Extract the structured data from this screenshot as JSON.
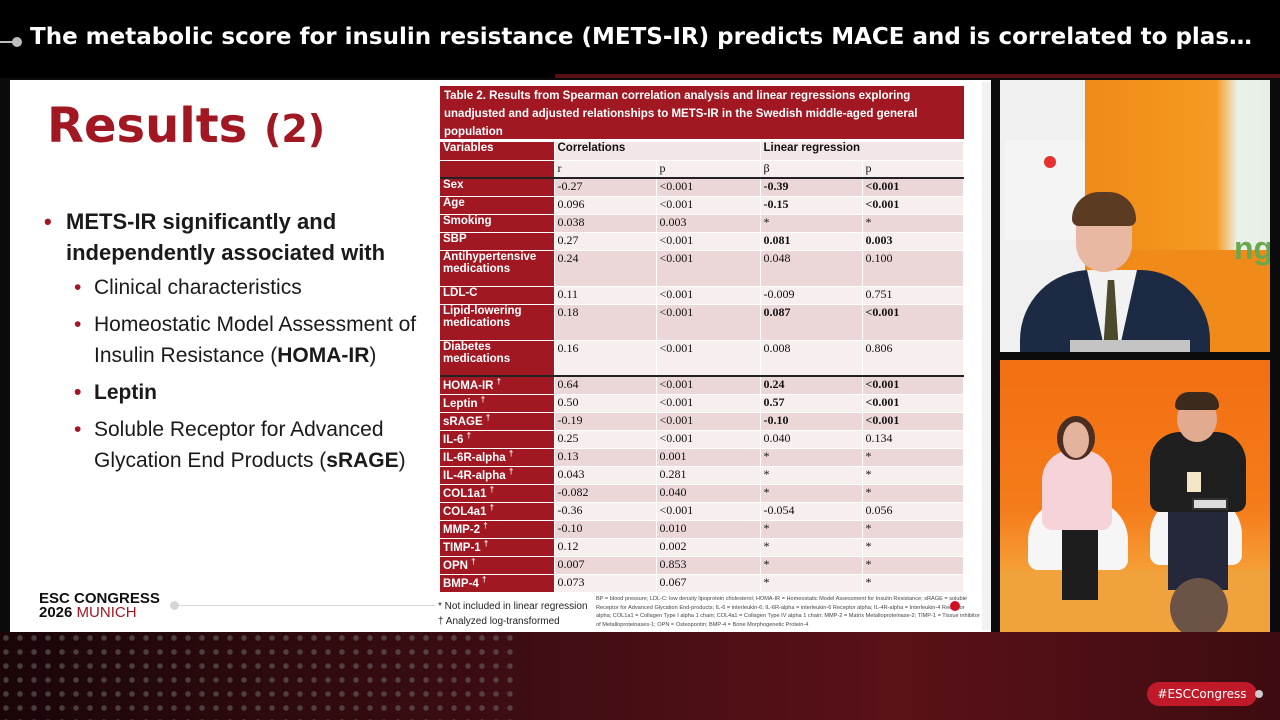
{
  "header": {
    "title": "The metabolic score for insulin resistance (METS-IR) predicts MACE and is correlated to plasma levels of leptin and sRAGE"
  },
  "slide": {
    "title_main": "Results",
    "title_sub": "(2)",
    "bullets": [
      {
        "level": 1,
        "text": "METS-IR significantly and independently associated with",
        "bold": true
      },
      {
        "level": 2,
        "text": "Clinical characteristics"
      },
      {
        "level": 2,
        "text_before": "Homeostatic Model Assessment of Insulin Resistance (",
        "text_bold": "HOMA-IR",
        "text_after": ")"
      },
      {
        "level": 2,
        "text": "Leptin",
        "bold": true
      },
      {
        "level": 2,
        "text_before": "Soluble Receptor for Advanced Glycation End Products (",
        "text_bold": "sRAGE",
        "text_after": ")"
      }
    ],
    "logo": {
      "line1": "ESC CONGRESS",
      "line2_year": "2026",
      "line2_city": "MUNICH"
    }
  },
  "table": {
    "caption": "Table 2. Results from Spearman correlation analysis and linear regressions exploring unadjusted and adjusted relationships to METS-IR in the Swedish middle-aged general population",
    "header": {
      "variables": "Variables",
      "correlations": "Correlations",
      "linear_regression": "Linear regression",
      "r": "r",
      "p": "p",
      "beta": "β",
      "p2": "p"
    },
    "rows": [
      {
        "var": "Sex",
        "r": "-0.27",
        "p": "<0.001",
        "beta": "-0.39",
        "p2": "<0.001",
        "bold": true
      },
      {
        "var": "Age",
        "r": "0.096",
        "p": "<0.001",
        "beta": "-0.15",
        "p2": "<0.001",
        "bold": true
      },
      {
        "var": "Smoking",
        "r": "0.038",
        "p": "0.003",
        "beta": "*",
        "p2": "*"
      },
      {
        "var": "SBP",
        "r": "0.27",
        "p": "<0.001",
        "beta": "0.081",
        "p2": "0.003",
        "bold": true
      },
      {
        "var": "Antihypertensive medications",
        "r": "0.24",
        "p": "<0.001",
        "beta": "0.048",
        "p2": "0.100"
      },
      {
        "var": "LDL-C",
        "r": "0.11",
        "p": "<0.001",
        "beta": "-0.009",
        "p2": "0.751"
      },
      {
        "var": "Lipid-lowering medications",
        "r": "0.18",
        "p": "<0.001",
        "beta": "0.087",
        "p2": "<0.001",
        "bold": true
      },
      {
        "var": "Diabetes medications",
        "r": "0.16",
        "p": "<0.001",
        "beta": "0.008",
        "p2": "0.806"
      },
      {
        "var": "HOMA-IR",
        "r": "0.64",
        "p": "<0.001",
        "beta": "0.24",
        "p2": "<0.001",
        "bold": true
      },
      {
        "var": "Leptin",
        "r": "0.50",
        "p": "<0.001",
        "beta": "0.57",
        "p2": "<0.001",
        "bold": true
      },
      {
        "var": "sRAGE",
        "r": "-0.19",
        "p": "<0.001",
        "beta": "-0.10",
        "p2": "<0.001",
        "bold": true
      },
      {
        "var": "IL-6",
        "r": "0.25",
        "p": "<0.001",
        "beta": "0.040",
        "p2": "0.134"
      },
      {
        "var": "IL-6R-alpha",
        "r": "0.13",
        "p": "0.001",
        "beta": "*",
        "p2": "*"
      },
      {
        "var": "IL-4R-alpha",
        "r": "0.043",
        "p": "0.281",
        "beta": "*",
        "p2": "*"
      },
      {
        "var": "COL1a1",
        "r": "-0.082",
        "p": "0.040",
        "beta": "*",
        "p2": "*"
      },
      {
        "var": "COL4a1",
        "r": "-0.36",
        "p": "<0.001",
        "beta": "-0.054",
        "p2": "0.056"
      },
      {
        "var": "MMP-2",
        "r": "-0.10",
        "p": "0.010",
        "beta": "*",
        "p2": "*"
      },
      {
        "var": "TIMP-1",
        "r": "0.12",
        "p": "0.002",
        "beta": "*",
        "p2": "*"
      },
      {
        "var": "OPN",
        "r": "0.007",
        "p": "0.853",
        "beta": "*",
        "p2": "*"
      },
      {
        "var": "BMP-4",
        "r": "0.073",
        "p": "0.067",
        "beta": "*",
        "p2": "*"
      }
    ],
    "dagger": "†",
    "foot_left": [
      "* Not included in linear regression",
      "† Analyzed log-transformed"
    ],
    "foot_right": "BP = blood pressure; LDL-C: low density lipoprotein cholesterol; HOMA-IR = Homeostatic Model Assessment for Insulin Resistance; sRAGE = soluble Receptor for Advanced Glycation End-products; IL-6 = interleukin-6; IL-6R-alpha = interleukin-6 Receptor alpha; IL-4R-alpha = Interleukin-4 Receptor alpha; COL1a1 = Collagen Type I alpha 1 chain; COL4a1 = Collagen Type IV alpha 1 chain; MMP-2 = Matrix Metalloproteinase-2; TIMP-1 = Tissue inhibitor of Metalloproteinases-1; OPN = Osteopontin; BMP-4 = Bone Morphogenetic Protein-4"
  },
  "video": {
    "cam1_wall_text": "ng"
  },
  "footer": {
    "hashtag": "#ESCCongress"
  }
}
